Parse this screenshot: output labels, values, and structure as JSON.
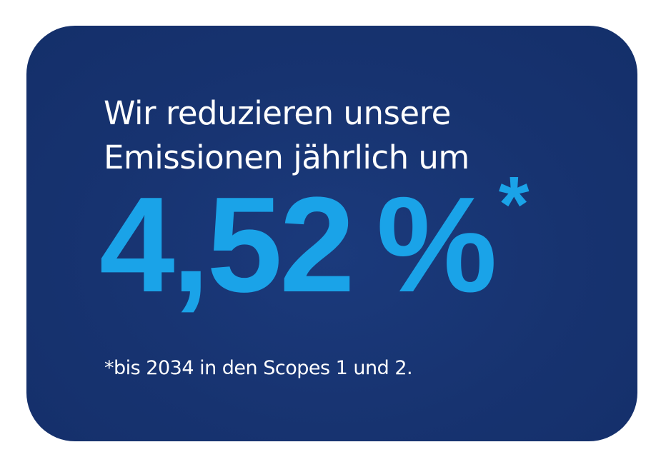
{
  "card": {
    "background": "#163270",
    "headline": {
      "line1": "Wir reduzieren unsere",
      "line2": "Emissionen jährlich um"
    },
    "figure": {
      "value": "4,52 %",
      "marker": "*",
      "color": "#1aa3e8"
    },
    "footnote": "*bis 2034 in den Scopes 1 und 2."
  }
}
